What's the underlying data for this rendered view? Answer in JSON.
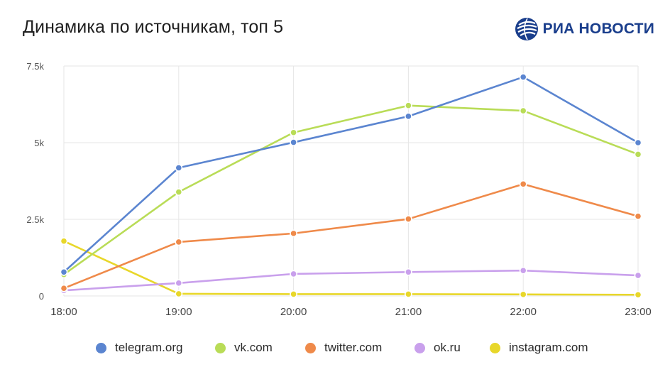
{
  "header": {
    "title": "Динамика по источникам, топ 5",
    "logo_text": "РИА НОВОСТИ"
  },
  "colors": {
    "telegram": "#5b85d0",
    "vk": "#b9dc57",
    "twitter": "#ef8a4a",
    "ok": "#c9a0ec",
    "instagram": "#e8d72a",
    "grid": "#e6e6e6",
    "logo": "#1a3e8c"
  },
  "legend": [
    {
      "label": "telegram.org",
      "color": "#5b85d0"
    },
    {
      "label": "vk.com",
      "color": "#b9dc57"
    },
    {
      "label": "twitter.com",
      "color": "#ef8a4a"
    },
    {
      "label": "ok.ru",
      "color": "#c9a0ec"
    },
    {
      "label": "instagram.com",
      "color": "#e8d72a"
    }
  ],
  "chart_data": {
    "type": "line",
    "title": "Динамика по источникам, топ 5",
    "x": [
      "18:00",
      "19:00",
      "20:00",
      "21:00",
      "22:00",
      "23:00"
    ],
    "ylim": [
      0,
      7500
    ],
    "yticks": [
      {
        "value": 0,
        "label": "0"
      },
      {
        "value": 2500,
        "label": "2.5k"
      },
      {
        "value": 5000,
        "label": "5k"
      },
      {
        "value": 7500,
        "label": "7.5k"
      }
    ],
    "grid": true,
    "legend_position": "bottom",
    "series": [
      {
        "name": "telegram.org",
        "color": "#5b85d0",
        "values": [
          780,
          4180,
          5010,
          5860,
          7140,
          5000
        ]
      },
      {
        "name": "vk.com",
        "color": "#b9dc57",
        "values": [
          700,
          3390,
          5330,
          6210,
          6040,
          4620
        ]
      },
      {
        "name": "twitter.com",
        "color": "#ef8a4a",
        "values": [
          250,
          1760,
          2040,
          2510,
          3650,
          2600
        ]
      },
      {
        "name": "ok.ru",
        "color": "#c9a0ec",
        "values": [
          180,
          420,
          720,
          780,
          830,
          670
        ]
      },
      {
        "name": "instagram.com",
        "color": "#e8d72a",
        "values": [
          1790,
          70,
          60,
          60,
          50,
          40
        ]
      }
    ]
  }
}
